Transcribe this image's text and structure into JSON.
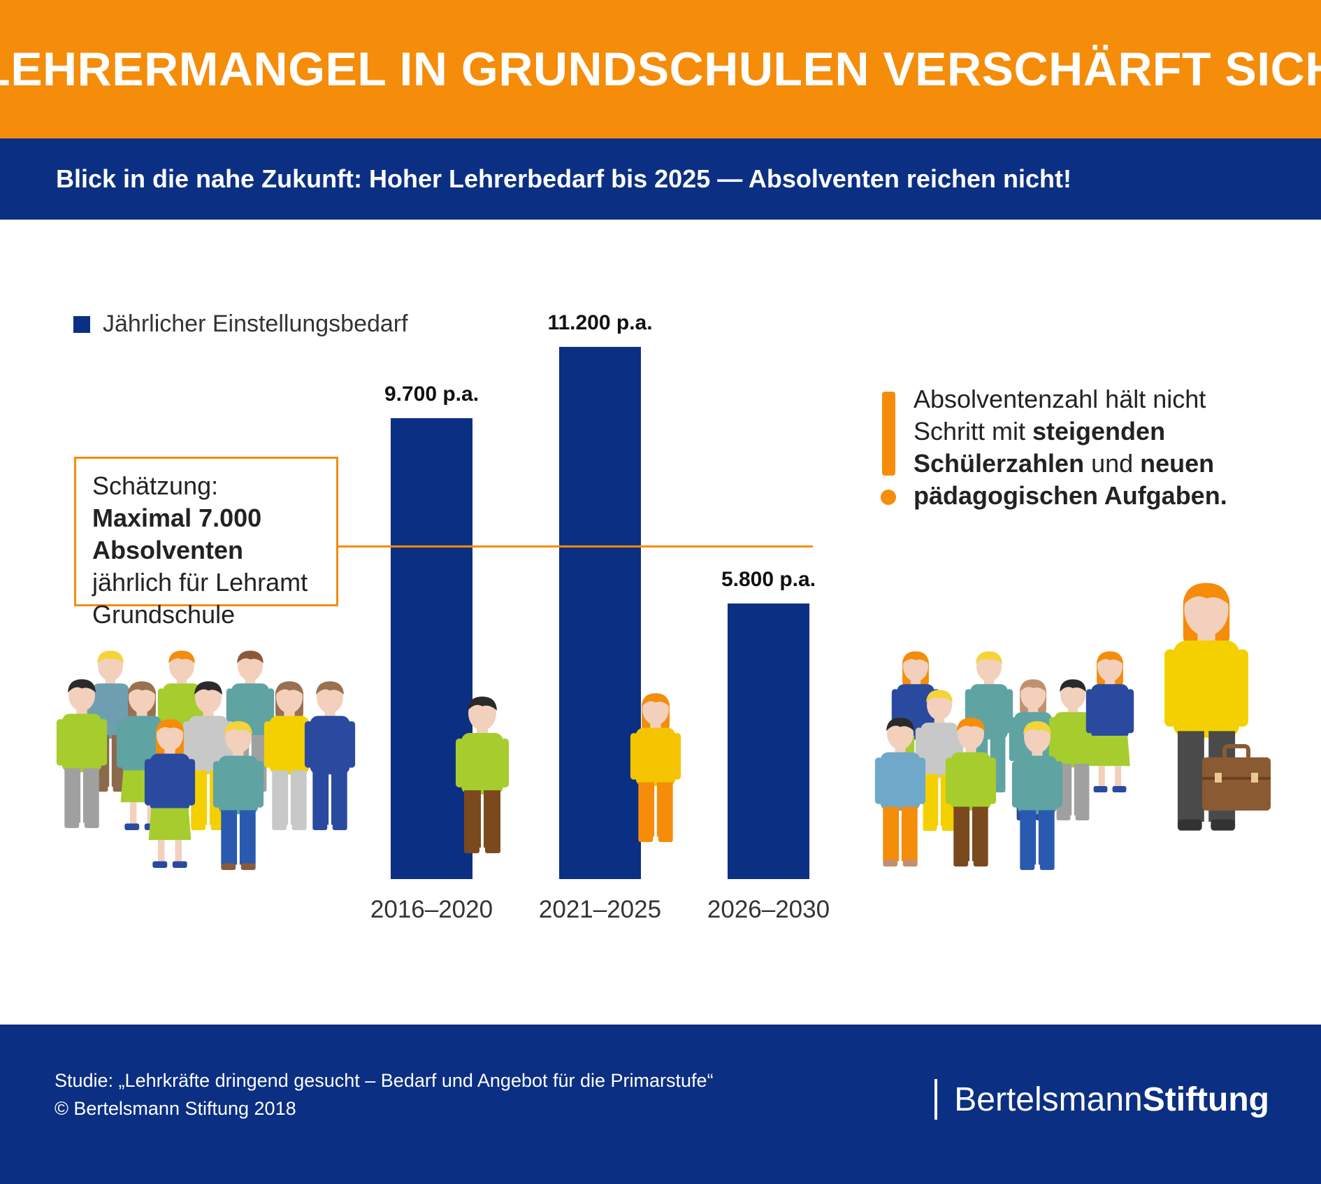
{
  "header": {
    "title": "LEHRERMANGEL IN GRUNDSCHULEN VERSCHÄRFT SICH",
    "subtitle": "Blick in die nahe Zukunft: Hoher Lehrerbedarf bis 2025 — Absolventen reichen nicht!"
  },
  "colors": {
    "orange": "#F58C0A",
    "navy": "#0B2F82"
  },
  "chart_data": {
    "type": "bar",
    "title": "",
    "xlabel": "",
    "ylabel": "",
    "categories": [
      "2016–2020",
      "2021–2025",
      "2026–2030"
    ],
    "series": [
      {
        "name": "Jährlicher Einstellungsbedarf",
        "values": [
          9700,
          11200,
          5800
        ]
      }
    ],
    "data_labels": [
      "9.700 p.a.",
      "11.200 p.a.",
      "5.800 p.a."
    ],
    "reference_line": {
      "value": 7000,
      "label_parts": [
        "Schätzung: ",
        "Maximal 7.000 Absolventen",
        " jährlich für Lehramt Grundschule"
      ]
    },
    "ylim": [
      0,
      12000
    ],
    "grid": false,
    "legend_position": "top-left"
  },
  "note": {
    "part1": "Absolventenzahl hält nicht Schritt mit ",
    "part2": "steigenden Schülerzahlen",
    "part3": " und ",
    "part4": "neuen pädagogischen Aufgaben."
  },
  "illustrations": {
    "left_group": "group-of-pupils-icon",
    "right_group": "pupils-with-teacher-icon",
    "bar_figures": [
      "boy-pupil-icon",
      "girl-pupil-icon"
    ]
  },
  "footer": {
    "source_line1": "Studie: „Lehrkräfte dringend gesucht – Bedarf und Angebot für die Primarstufe“",
    "source_line2": "© Bertelsmann Stiftung 2018",
    "brand_light": "Bertelsmann",
    "brand_bold": "Stiftung"
  }
}
